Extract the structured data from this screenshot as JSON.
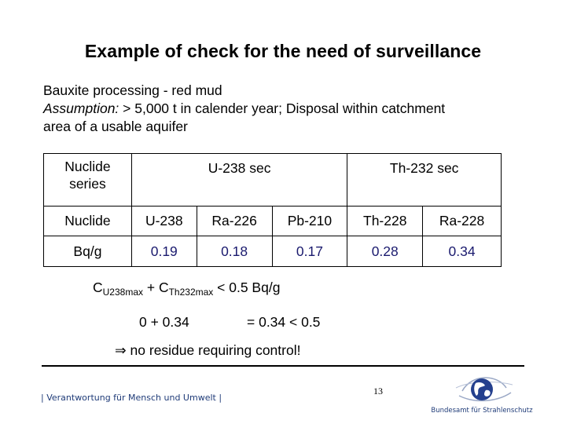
{
  "slide": {
    "title": "Example of check for the need of surveillance",
    "intro": {
      "line1": "Bauxite processing  - red mud",
      "assumption_label": "Assumption:",
      "assumption_rest": " > 5,000 t in calender year; Disposal within catchment",
      "line3": "area of a usable aquifer"
    },
    "table": {
      "series_label_1": "Nuclide",
      "series_label_2": "series",
      "group_u": "U-238 sec",
      "group_th": "Th-232 sec",
      "nuclide_label": "Nuclide",
      "nuclides": [
        "U-238",
        "Ra-226",
        "Pb-210",
        "Th-228",
        "Ra-228"
      ],
      "unit_label": "Bq/g",
      "values": [
        "0.19",
        "0.18",
        "0.17",
        "0.28",
        "0.34"
      ]
    },
    "formula": {
      "c1": "C",
      "sub1": "U238max",
      "plus": " + C",
      "sub2": "Th232max",
      "rest": " < 0.5 Bq/g"
    },
    "calc_left": "0 + 0.34",
    "calc_right": "= 0.34 < 0.5",
    "conclusion_symbol": "⇒",
    "conclusion_text": " no residue requiring control!",
    "footer_slogan": "| Verantwortung für Mensch und Umwelt |",
    "page_number": "13",
    "logo_text": "Bundesamt für Strahlenschutz"
  }
}
